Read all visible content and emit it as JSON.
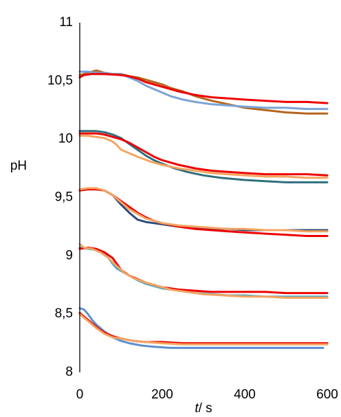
{
  "chart_data": {
    "type": "line",
    "title": "",
    "xlabel_italic": "t",
    "xlabel_unit": "/ s",
    "ylabel": "pH",
    "xlim": [
      0,
      600
    ],
    "ylim": [
      8,
      11
    ],
    "x_ticks": [
      "0",
      "200",
      "400",
      "600"
    ],
    "x_tick_values": [
      0,
      200,
      400,
      600
    ],
    "y_ticks": [
      "8",
      "8,5",
      "9",
      "9,5",
      "10",
      "10,5",
      "11"
    ],
    "y_tick_values": [
      8,
      8.5,
      9,
      9.5,
      10,
      10.5,
      11
    ],
    "grid": false,
    "legend": "none",
    "series": [
      {
        "color": "#B5651D",
        "x": [
          0,
          20,
          40,
          60,
          80,
          100,
          120,
          140,
          160,
          180,
          200,
          220,
          250,
          280,
          320,
          360,
          400,
          450,
          500,
          550,
          600
        ],
        "y": [
          10.55,
          10.57,
          10.59,
          10.57,
          10.56,
          10.56,
          10.54,
          10.53,
          10.51,
          10.49,
          10.47,
          10.44,
          10.41,
          10.37,
          10.33,
          10.3,
          10.27,
          10.25,
          10.23,
          10.22,
          10.22
        ]
      },
      {
        "color": "#7BA3D6",
        "x": [
          0,
          20,
          40,
          60,
          80,
          100,
          120,
          140,
          160,
          180,
          200,
          220,
          250,
          280,
          320,
          360,
          400,
          450,
          500,
          550,
          600
        ],
        "y": [
          10.58,
          10.58,
          10.57,
          10.57,
          10.56,
          10.56,
          10.53,
          10.5,
          10.46,
          10.43,
          10.4,
          10.37,
          10.34,
          10.32,
          10.3,
          10.29,
          10.28,
          10.27,
          10.27,
          10.26,
          10.26
        ]
      },
      {
        "color": "#EE0000",
        "x": [
          0,
          10,
          30,
          60,
          100,
          120,
          140,
          160,
          200,
          240,
          280,
          320,
          360,
          400,
          450,
          500,
          550,
          600
        ],
        "y": [
          10.53,
          10.55,
          10.56,
          10.56,
          10.55,
          10.54,
          10.52,
          10.49,
          10.45,
          10.41,
          10.38,
          10.36,
          10.35,
          10.34,
          10.33,
          10.32,
          10.32,
          10.31
        ]
      },
      {
        "color": "#2E6F7E",
        "x": [
          0,
          20,
          40,
          60,
          80,
          100,
          120,
          140,
          160,
          180,
          200,
          230,
          260,
          300,
          340,
          400,
          450,
          500,
          550,
          600
        ],
        "y": [
          10.07,
          10.07,
          10.07,
          10.06,
          10.04,
          10.01,
          9.96,
          9.91,
          9.86,
          9.82,
          9.79,
          9.75,
          9.72,
          9.69,
          9.67,
          9.65,
          9.64,
          9.63,
          9.63,
          9.63
        ]
      },
      {
        "color": "#F4A460",
        "x": [
          0,
          20,
          40,
          60,
          80,
          90,
          100,
          120,
          140,
          170,
          200,
          240,
          280,
          320,
          360,
          400,
          450,
          500,
          550,
          600
        ],
        "y": [
          10.03,
          10.03,
          10.02,
          10.01,
          9.98,
          9.95,
          9.91,
          9.88,
          9.85,
          9.81,
          9.78,
          9.75,
          9.73,
          9.71,
          9.7,
          9.69,
          9.68,
          9.68,
          9.67,
          9.67
        ]
      },
      {
        "color": "#EE0000",
        "x": [
          0,
          20,
          40,
          60,
          80,
          100,
          120,
          140,
          160,
          180,
          200,
          240,
          280,
          320,
          360,
          400,
          450,
          500,
          550,
          600
        ],
        "y": [
          10.05,
          10.05,
          10.05,
          10.04,
          10.02,
          10.0,
          9.97,
          9.93,
          9.89,
          9.85,
          9.82,
          9.78,
          9.75,
          9.73,
          9.72,
          9.71,
          9.7,
          9.7,
          9.7,
          9.69
        ]
      },
      {
        "color": "#2F4B7C",
        "x": [
          0,
          20,
          40,
          60,
          80,
          100,
          120,
          140,
          160,
          180,
          200,
          240,
          280,
          320,
          360,
          400,
          450,
          500,
          550,
          600
        ],
        "y": [
          9.57,
          9.57,
          9.57,
          9.56,
          9.52,
          9.44,
          9.37,
          9.31,
          9.29,
          9.28,
          9.27,
          9.25,
          9.24,
          9.23,
          9.23,
          9.22,
          9.22,
          9.22,
          9.22,
          9.22
        ]
      },
      {
        "color": "#EE0000",
        "x": [
          0,
          20,
          40,
          60,
          80,
          100,
          120,
          140,
          160,
          180,
          200,
          240,
          280,
          320,
          360,
          400,
          450,
          500,
          550,
          600
        ],
        "y": [
          9.56,
          9.57,
          9.57,
          9.56,
          9.52,
          9.47,
          9.42,
          9.37,
          9.33,
          9.3,
          9.28,
          9.25,
          9.23,
          9.22,
          9.21,
          9.2,
          9.19,
          9.18,
          9.17,
          9.17
        ]
      },
      {
        "color": "#F4A460",
        "x": [
          0,
          20,
          40,
          60,
          80,
          100,
          120,
          140,
          160,
          180,
          200,
          240,
          280,
          320,
          360,
          400,
          450,
          500,
          550,
          600
        ],
        "y": [
          9.57,
          9.58,
          9.58,
          9.56,
          9.52,
          9.46,
          9.4,
          9.36,
          9.32,
          9.3,
          9.28,
          9.26,
          9.25,
          9.24,
          9.23,
          9.23,
          9.22,
          9.22,
          9.21,
          9.21
        ]
      },
      {
        "color": "#4BACC6",
        "x": [
          0,
          20,
          40,
          60,
          70,
          80,
          90,
          100,
          120,
          140,
          160,
          180,
          200,
          240,
          280,
          320,
          360,
          400,
          450,
          500,
          550,
          600
        ],
        "y": [
          9.07,
          9.06,
          9.05,
          9.02,
          8.98,
          8.93,
          8.89,
          8.87,
          8.83,
          8.79,
          8.76,
          8.74,
          8.72,
          8.7,
          8.68,
          8.67,
          8.66,
          8.66,
          8.65,
          8.65,
          8.65,
          8.65
        ]
      },
      {
        "color": "#EE0000",
        "x": [
          0,
          20,
          40,
          60,
          80,
          100,
          120,
          140,
          160,
          180,
          200,
          240,
          280,
          320,
          360,
          400,
          450,
          500,
          550,
          600
        ],
        "y": [
          9.06,
          9.07,
          9.06,
          9.03,
          8.98,
          8.88,
          8.83,
          8.8,
          8.77,
          8.75,
          8.73,
          8.71,
          8.7,
          8.69,
          8.69,
          8.69,
          8.69,
          8.68,
          8.68,
          8.68
        ]
      },
      {
        "color": "#F4A460",
        "x": [
          0,
          10,
          30,
          50,
          70,
          90,
          110,
          130,
          160,
          190,
          220,
          260,
          300,
          350,
          400,
          450,
          500,
          550,
          600
        ],
        "y": [
          9.1,
          9.07,
          9.06,
          9.03,
          8.98,
          8.91,
          8.85,
          8.81,
          8.77,
          8.74,
          8.71,
          8.69,
          8.67,
          8.66,
          8.65,
          8.65,
          8.64,
          8.64,
          8.64
        ]
      },
      {
        "color": "#5B8FD0",
        "x": [
          0,
          10,
          20,
          30,
          40,
          60,
          80,
          100,
          120,
          150,
          180,
          220,
          260,
          300,
          350,
          400,
          450,
          500,
          550,
          590
        ],
        "y": [
          8.55,
          8.54,
          8.5,
          8.45,
          8.41,
          8.35,
          8.3,
          8.27,
          8.25,
          8.23,
          8.22,
          8.21,
          8.21,
          8.21,
          8.21,
          8.21,
          8.21,
          8.21,
          8.21,
          8.21
        ]
      },
      {
        "color": "#EE0000",
        "x": [
          0,
          20,
          40,
          60,
          80,
          100,
          130,
          160,
          200,
          250,
          300,
          350,
          400,
          450,
          500,
          550,
          600
        ],
        "y": [
          8.51,
          8.45,
          8.39,
          8.34,
          8.31,
          8.29,
          8.27,
          8.26,
          8.26,
          8.25,
          8.25,
          8.25,
          8.25,
          8.25,
          8.25,
          8.25,
          8.25
        ]
      },
      {
        "color": "#F4A460",
        "x": [
          0,
          20,
          40,
          60,
          80,
          100,
          130,
          160,
          200,
          250,
          300,
          350,
          400,
          450,
          500,
          550,
          600
        ],
        "y": [
          8.5,
          8.44,
          8.38,
          8.33,
          8.3,
          8.29,
          8.27,
          8.26,
          8.25,
          8.24,
          8.24,
          8.24,
          8.24,
          8.24,
          8.24,
          8.24,
          8.24
        ]
      }
    ]
  }
}
